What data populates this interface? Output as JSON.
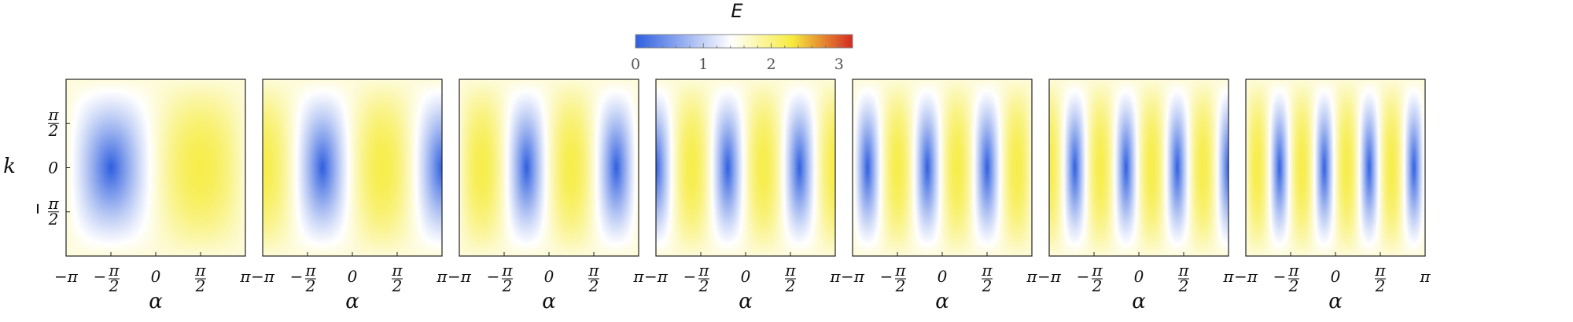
{
  "chart_data": {
    "type": "heatmap",
    "panel_count": 7,
    "colorbar": {
      "title": "E",
      "range": [
        0,
        3.2
      ],
      "ticks": [
        "0",
        "1",
        "2",
        "3"
      ],
      "tick_values": [
        0,
        1,
        2,
        3
      ],
      "colors": [
        "#2f5fe0",
        "#ffffff",
        "#f6ec3f",
        "#d42a22"
      ],
      "color_stops": [
        0,
        0.44,
        0.72,
        1
      ]
    },
    "x_axis": {
      "label": "α",
      "range": [
        -3.14159,
        3.14159
      ],
      "tick_values": [
        -3.14159,
        -1.5708,
        0,
        1.5708,
        3.14159
      ],
      "tick_labels": [
        "−π",
        "−π/2",
        "0",
        "π/2",
        "π"
      ]
    },
    "y_axis": {
      "label": "k",
      "range": [
        -3.14159,
        3.14159
      ],
      "tick_values": [
        1.5708,
        0,
        -1.5708
      ],
      "tick_labels": [
        "π/2",
        "0",
        "−π/2"
      ]
    },
    "panel_frequencies": [
      1,
      1.5,
      2,
      2.5,
      3,
      3.5,
      4
    ]
  }
}
